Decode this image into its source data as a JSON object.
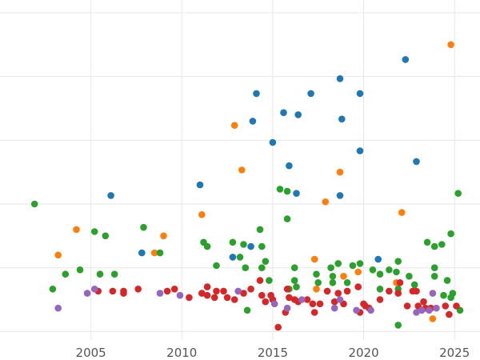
{
  "chart_data": {
    "type": "scatter",
    "title": "",
    "xlabel": "",
    "ylabel": "",
    "xlim": [
      2000,
      2026.4
    ],
    "ylim": [
      -0.2,
      7.8
    ],
    "x_ticks": [
      2005,
      2010,
      2015,
      2020,
      2025
    ],
    "x_tick_labels": [
      "2005",
      "2010",
      "2015",
      "2020",
      "2025"
    ],
    "y_gridlines": [
      0,
      1.5,
      3,
      4.5,
      6,
      7.5
    ],
    "grid": true,
    "legend": "none",
    "series": [
      {
        "color": "#1f77b4",
        "points": [
          [
            2006.1,
            3.2
          ],
          [
            2007.8,
            1.85
          ],
          [
            2011.0,
            3.45
          ],
          [
            2012.8,
            1.75
          ],
          [
            2013.9,
            4.95
          ],
          [
            2013.8,
            2.0
          ],
          [
            2014.1,
            5.6
          ],
          [
            2015.0,
            4.45
          ],
          [
            2015.6,
            5.15
          ],
          [
            2015.9,
            3.9
          ],
          [
            2016.3,
            3.25
          ],
          [
            2016.4,
            5.1
          ],
          [
            2017.1,
            5.6
          ],
          [
            2018.7,
            5.95
          ],
          [
            2018.8,
            5.0
          ],
          [
            2018.7,
            3.2
          ],
          [
            2019.8,
            5.6
          ],
          [
            2019.8,
            4.25
          ],
          [
            2020.8,
            1.7
          ],
          [
            2022.3,
            6.4
          ],
          [
            2022.9,
            4.0
          ]
        ]
      },
      {
        "color": "#ff7f0e",
        "points": [
          [
            2003.2,
            1.8
          ],
          [
            2004.2,
            2.4
          ],
          [
            2008.5,
            1.85
          ],
          [
            2009.0,
            2.25
          ],
          [
            2011.1,
            2.75
          ],
          [
            2012.9,
            4.85
          ],
          [
            2013.3,
            3.8
          ],
          [
            2017.3,
            1.7
          ],
          [
            2017.4,
            1.0
          ],
          [
            2017.9,
            3.05
          ],
          [
            2018.7,
            3.75
          ],
          [
            2018.9,
            1.3
          ],
          [
            2019.7,
            1.4
          ],
          [
            2021.8,
            1.15
          ],
          [
            2022.1,
            2.8
          ],
          [
            2023.8,
            0.3
          ],
          [
            2024.8,
            6.75
          ]
        ]
      },
      {
        "color": "#2ca02c",
        "points": [
          [
            2001.9,
            3.0
          ],
          [
            2002.9,
            1.0
          ],
          [
            2003.6,
            1.35
          ],
          [
            2004.4,
            1.45
          ],
          [
            2005.2,
            2.35
          ],
          [
            2005.5,
            1.35
          ],
          [
            2005.8,
            2.25
          ],
          [
            2006.3,
            1.35
          ],
          [
            2007.9,
            2.45
          ],
          [
            2008.8,
            1.85
          ],
          [
            2011.2,
            2.1
          ],
          [
            2011.4,
            2.0
          ],
          [
            2011.9,
            1.55
          ],
          [
            2012.8,
            2.1
          ],
          [
            2013.2,
            1.75
          ],
          [
            2013.4,
            2.05
          ],
          [
            2013.5,
            1.5
          ],
          [
            2013.6,
            0.5
          ],
          [
            2014.3,
            2.4
          ],
          [
            2014.4,
            2.0
          ],
          [
            2014.4,
            1.5
          ],
          [
            2014.6,
            1.65
          ],
          [
            2014.8,
            1.2
          ],
          [
            2015.8,
            2.65
          ],
          [
            2015.8,
            3.3
          ],
          [
            2015.4,
            3.35
          ],
          [
            2015.9,
            1.0
          ],
          [
            2016.2,
            1.5
          ],
          [
            2016.2,
            1.2
          ],
          [
            2016.3,
            1.05
          ],
          [
            2017.4,
            1.35
          ],
          [
            2017.5,
            1.15
          ],
          [
            2018.2,
            1.5
          ],
          [
            2018.3,
            1.3
          ],
          [
            2018.3,
            1.15
          ],
          [
            2018.6,
            1.6
          ],
          [
            2019.1,
            1.15
          ],
          [
            2019.4,
            1.55
          ],
          [
            2019.8,
            1.6
          ],
          [
            2020.5,
            1.45
          ],
          [
            2020.9,
            1.35
          ],
          [
            2020.9,
            1.0
          ],
          [
            2021.4,
            1.45
          ],
          [
            2021.9,
            1.65
          ],
          [
            2021.8,
            1.4
          ],
          [
            2021.9,
            1.0
          ],
          [
            2021.9,
            0.15
          ],
          [
            2022.5,
            1.3
          ],
          [
            2022.8,
            1.1
          ],
          [
            2023.5,
            2.1
          ],
          [
            2023.9,
            2.0
          ],
          [
            2023.9,
            1.5
          ],
          [
            2023.9,
            1.3
          ],
          [
            2024.3,
            2.05
          ],
          [
            2024.4,
            0.85
          ],
          [
            2024.6,
            1.2
          ],
          [
            2024.8,
            2.3
          ],
          [
            2024.8,
            0.8
          ],
          [
            2024.9,
            0.9
          ],
          [
            2025.2,
            3.25
          ],
          [
            2025.3,
            0.5
          ]
        ]
      },
      {
        "color": "#d62728",
        "points": [
          [
            2005.4,
            0.95
          ],
          [
            2006.2,
            0.95
          ],
          [
            2006.8,
            0.9
          ],
          [
            2006.8,
            0.95
          ],
          [
            2007.6,
            1.0
          ],
          [
            2009.2,
            0.95
          ],
          [
            2009.6,
            1.0
          ],
          [
            2010.4,
            0.8
          ],
          [
            2011.1,
            0.9
          ],
          [
            2011.4,
            1.05
          ],
          [
            2011.4,
            0.85
          ],
          [
            2011.8,
            0.8
          ],
          [
            2011.9,
            0.95
          ],
          [
            2012.3,
            0.95
          ],
          [
            2012.5,
            0.8
          ],
          [
            2012.9,
            0.75
          ],
          [
            2013.4,
            0.9
          ],
          [
            2013.8,
            1.0
          ],
          [
            2014.3,
            1.2
          ],
          [
            2014.4,
            0.85
          ],
          [
            2014.6,
            0.7
          ],
          [
            2014.9,
            0.85
          ],
          [
            2015.0,
            0.75
          ],
          [
            2015.3,
            0.1
          ],
          [
            2015.7,
            0.45
          ],
          [
            2015.8,
            1.0
          ],
          [
            2015.9,
            0.8
          ],
          [
            2016.2,
            0.75
          ],
          [
            2016.4,
            0.7
          ],
          [
            2016.9,
            0.75
          ],
          [
            2017.2,
            0.65
          ],
          [
            2017.3,
            0.45
          ],
          [
            2017.6,
            0.65
          ],
          [
            2018.0,
            0.95
          ],
          [
            2018.4,
            0.7
          ],
          [
            2018.6,
            0.9
          ],
          [
            2018.9,
            0.65
          ],
          [
            2019.1,
            0.95
          ],
          [
            2019.7,
            1.05
          ],
          [
            2019.8,
            0.45
          ],
          [
            2020.0,
            0.65
          ],
          [
            2020.1,
            0.6
          ],
          [
            2020.3,
            0.55
          ],
          [
            2020.9,
            0.75
          ],
          [
            2021.4,
            0.95
          ],
          [
            2021.9,
            0.9
          ],
          [
            2022.0,
            1.15
          ],
          [
            2022.4,
            0.6
          ],
          [
            2022.7,
            0.95
          ],
          [
            2022.9,
            0.95
          ],
          [
            2023.0,
            0.6
          ],
          [
            2023.3,
            0.7
          ],
          [
            2023.4,
            0.55
          ],
          [
            2023.7,
            0.55
          ],
          [
            2024.5,
            0.6
          ],
          [
            2024.7,
            0.4
          ],
          [
            2025.1,
            0.6
          ]
        ]
      },
      {
        "color": "#9467bd",
        "points": [
          [
            2003.2,
            0.55
          ],
          [
            2004.8,
            0.9
          ],
          [
            2005.2,
            1.0
          ],
          [
            2008.8,
            0.9
          ],
          [
            2009.9,
            0.85
          ],
          [
            2013.1,
            0.95
          ],
          [
            2015.1,
            0.65
          ],
          [
            2015.8,
            0.55
          ],
          [
            2016.6,
            0.75
          ],
          [
            2018.4,
            0.55
          ],
          [
            2018.7,
            0.75
          ],
          [
            2019.6,
            0.5
          ],
          [
            2020.4,
            0.5
          ],
          [
            2022.9,
            0.45
          ],
          [
            2023.2,
            0.5
          ],
          [
            2023.6,
            0.5
          ],
          [
            2023.8,
            0.9
          ],
          [
            2024.0,
            0.55
          ]
        ]
      }
    ]
  }
}
